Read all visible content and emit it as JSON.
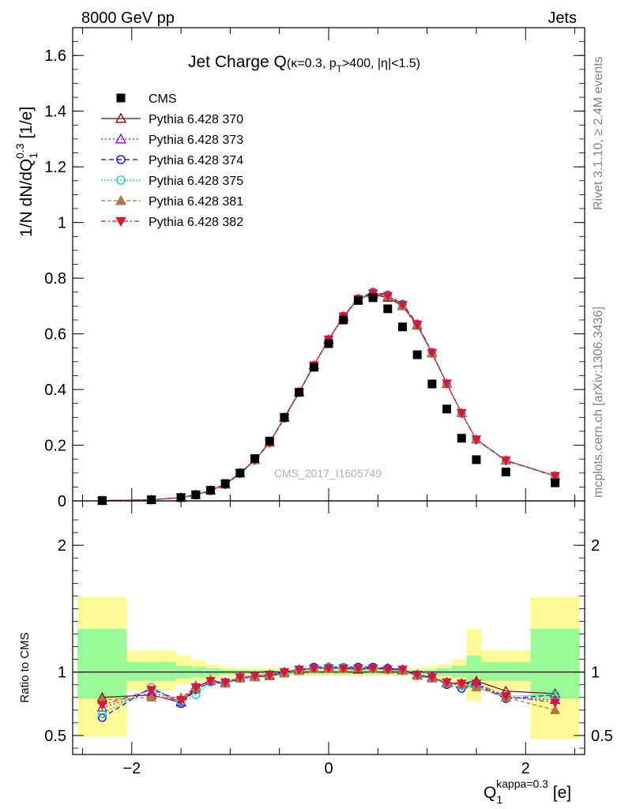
{
  "header": {
    "left_label": "8000 GeV pp",
    "right_label": "Jets",
    "side_top": "Rivet 3.1.10, ≥ 2.4M events",
    "side_bottom": "mcplots.cern.ch [arXiv:1306.3436]",
    "watermark": "CMS_2017_I1605749"
  },
  "colors": {
    "cms": "#000000",
    "p370": "#8b0000",
    "p373": "#9400d3",
    "p374": "#0000ff",
    "p375": "#00ced1",
    "p381": "#b07840",
    "p382": "#dc143c",
    "band_inner": "#98fb98",
    "band_outer": "#fffa96"
  },
  "chart_data": [
    {
      "type": "scatter",
      "panel": "main",
      "title_main": "Jet Charge Q",
      "title_sub": "(κ=0.3, p",
      "title_sub_sub": "T",
      "title_sub_rest": ">400, |η|<1.5)",
      "ylabel": "1/N dN/dQ",
      "ylabel_sub": "1",
      "ylabel_sup": "0.3",
      "ylabel_unit": " [1/e]",
      "xlim": [
        -2.6,
        2.6
      ],
      "ylim": [
        0,
        1.7
      ],
      "yticks": [
        0,
        0.2,
        0.4,
        0.6,
        0.8,
        1,
        1.2,
        1.4,
        1.6
      ],
      "ytick_labels": [
        "0",
        "0.2",
        "0.4",
        "0.6",
        "0.8",
        "1",
        "1.2",
        "1.4",
        "1.6"
      ],
      "legend_position": "top-left",
      "legend": [
        {
          "name": "CMS",
          "marker": "square",
          "color": "#000000"
        },
        {
          "name": "Pythia 6.428 370",
          "marker": "triangle-open",
          "color": "#8b0000"
        },
        {
          "name": "Pythia 6.428 373",
          "marker": "triangle-open",
          "color": "#9400d3"
        },
        {
          "name": "Pythia 6.428 374",
          "marker": "circle-open",
          "color": "#0000ff"
        },
        {
          "name": "Pythia 6.428 375",
          "marker": "circle-open",
          "color": "#00ced1"
        },
        {
          "name": "Pythia 6.428 381",
          "marker": "triangle",
          "color": "#b07840"
        },
        {
          "name": "Pythia 6.428 382",
          "marker": "triangle-down",
          "color": "#dc143c"
        }
      ],
      "x": [
        -2.3,
        -1.8,
        -1.5,
        -1.35,
        -1.2,
        -1.05,
        -0.9,
        -0.75,
        -0.6,
        -0.45,
        -0.3,
        -0.15,
        0.0,
        0.15,
        0.3,
        0.45,
        0.6,
        0.75,
        0.9,
        1.05,
        1.2,
        1.35,
        1.5,
        1.8,
        2.3
      ],
      "cms": [
        0.001,
        0.004,
        0.012,
        0.022,
        0.038,
        0.062,
        0.1,
        0.152,
        0.215,
        0.3,
        0.39,
        0.48,
        0.565,
        0.65,
        0.72,
        0.73,
        0.69,
        0.625,
        0.525,
        0.42,
        0.33,
        0.225,
        0.148,
        0.104,
        0.065
      ],
      "series": [
        {
          "name": "Pythia 6.428 370",
          "values": [
            0.001,
            0.004,
            0.012,
            0.022,
            0.038,
            0.06,
            0.1,
            0.148,
            0.21,
            0.3,
            0.392,
            0.488,
            0.58,
            0.663,
            0.725,
            0.742,
            0.73,
            0.7,
            0.63,
            0.53,
            0.42,
            0.315,
            0.22,
            0.145,
            0.09
          ]
        },
        {
          "name": "Pythia 6.428 373",
          "values": [
            0.001,
            0.004,
            0.012,
            0.022,
            0.037,
            0.059,
            0.099,
            0.147,
            0.209,
            0.298,
            0.39,
            0.486,
            0.578,
            0.66,
            0.723,
            0.745,
            0.735,
            0.703,
            0.633,
            0.532,
            0.422,
            0.316,
            0.221,
            0.146,
            0.09
          ]
        },
        {
          "name": "Pythia 6.428 374",
          "values": [
            0.001,
            0.004,
            0.011,
            0.021,
            0.036,
            0.058,
            0.098,
            0.146,
            0.208,
            0.297,
            0.389,
            0.487,
            0.58,
            0.664,
            0.727,
            0.75,
            0.74,
            0.707,
            0.636,
            0.534,
            0.42,
            0.314,
            0.219,
            0.144,
            0.089
          ]
        },
        {
          "name": "Pythia 6.428 375",
          "values": [
            0.001,
            0.004,
            0.011,
            0.021,
            0.036,
            0.058,
            0.098,
            0.146,
            0.208,
            0.296,
            0.388,
            0.485,
            0.579,
            0.662,
            0.726,
            0.748,
            0.738,
            0.705,
            0.634,
            0.533,
            0.421,
            0.315,
            0.22,
            0.145,
            0.09
          ]
        },
        {
          "name": "Pythia 6.428 381",
          "values": [
            0.001,
            0.004,
            0.012,
            0.022,
            0.037,
            0.059,
            0.099,
            0.147,
            0.209,
            0.299,
            0.391,
            0.487,
            0.579,
            0.662,
            0.724,
            0.744,
            0.734,
            0.701,
            0.631,
            0.531,
            0.421,
            0.315,
            0.22,
            0.145,
            0.09
          ]
        },
        {
          "name": "Pythia 6.428 382",
          "values": [
            0.001,
            0.004,
            0.012,
            0.022,
            0.037,
            0.059,
            0.099,
            0.147,
            0.209,
            0.299,
            0.391,
            0.487,
            0.58,
            0.663,
            0.725,
            0.746,
            0.736,
            0.704,
            0.633,
            0.532,
            0.422,
            0.316,
            0.221,
            0.146,
            0.09
          ]
        }
      ]
    },
    {
      "type": "scatter",
      "panel": "ratio",
      "ylabel": "Ratio to CMS",
      "xlabel": "Q",
      "xlabel_sub": "1",
      "xlabel_sup": "kappa=0.3",
      "xlabel_unit": " [e]",
      "xlim": [
        -2.6,
        2.6
      ],
      "ylim": [
        0.35,
        2.35
      ],
      "xticks": [
        -2,
        0,
        2
      ],
      "xtick_labels": [
        "−2",
        "0",
        "2"
      ],
      "yticks": [
        0.5,
        1,
        2
      ],
      "ytick_labels": [
        "0.5",
        "1",
        "2"
      ],
      "bins": [
        {
          "lo": -2.55,
          "hi": -2.05,
          "inner": [
            0.79,
            1.34
          ],
          "outer": [
            0.49,
            1.59
          ]
        },
        {
          "lo": -2.05,
          "hi": -1.55,
          "inner": [
            0.93,
            1.08
          ],
          "outer": [
            0.86,
            1.17
          ]
        },
        {
          "lo": -1.55,
          "hi": -1.4,
          "inner": [
            0.95,
            1.05
          ],
          "outer": [
            0.9,
            1.13
          ]
        },
        {
          "lo": -1.4,
          "hi": -1.25,
          "inner": [
            0.96,
            1.04
          ],
          "outer": [
            0.92,
            1.09
          ]
        },
        {
          "lo": -1.25,
          "hi": -1.1,
          "inner": [
            0.97,
            1.03
          ],
          "outer": [
            0.94,
            1.06
          ]
        },
        {
          "lo": -1.1,
          "hi": -0.95,
          "inner": [
            0.98,
            1.02
          ],
          "outer": [
            0.96,
            1.04
          ]
        },
        {
          "lo": -0.95,
          "hi": 0.95,
          "inner": [
            0.985,
            1.015
          ],
          "outer": [
            0.97,
            1.03
          ]
        },
        {
          "lo": 0.95,
          "hi": 1.1,
          "inner": [
            0.98,
            1.02
          ],
          "outer": [
            0.96,
            1.04
          ]
        },
        {
          "lo": 1.1,
          "hi": 1.25,
          "inner": [
            0.97,
            1.03
          ],
          "outer": [
            0.94,
            1.06
          ]
        },
        {
          "lo": 1.25,
          "hi": 1.4,
          "inner": [
            0.96,
            1.05
          ],
          "outer": [
            0.92,
            1.1
          ]
        },
        {
          "lo": 1.4,
          "hi": 1.55,
          "inner": [
            0.87,
            1.13
          ],
          "outer": [
            0.77,
            1.34
          ]
        },
        {
          "lo": 1.55,
          "hi": 2.05,
          "inner": [
            0.93,
            1.08
          ],
          "outer": [
            0.86,
            1.17
          ]
        },
        {
          "lo": 2.05,
          "hi": 2.55,
          "inner": [
            0.79,
            1.34
          ],
          "outer": [
            0.47,
            1.59
          ]
        }
      ],
      "x": [
        -2.3,
        -1.8,
        -1.5,
        -1.35,
        -1.2,
        -1.05,
        -0.9,
        -0.75,
        -0.6,
        -0.45,
        -0.3,
        -0.15,
        0.0,
        0.15,
        0.3,
        0.45,
        0.6,
        0.75,
        0.9,
        1.05,
        1.2,
        1.35,
        1.5,
        1.8,
        2.3
      ],
      "series": [
        {
          "name": "Pythia 6.428 370",
          "values": [
            0.8,
            0.82,
            0.76,
            0.87,
            0.94,
            0.91,
            0.95,
            0.96,
            0.97,
            0.99,
            1.01,
            1.03,
            1.03,
            1.03,
            1.02,
            1.03,
            1.03,
            1.02,
            0.97,
            0.96,
            0.91,
            0.91,
            0.93,
            0.85,
            0.83
          ]
        },
        {
          "name": "Pythia 6.428 373",
          "values": [
            0.72,
            0.84,
            0.77,
            0.89,
            0.93,
            0.92,
            0.96,
            0.97,
            0.98,
            1.0,
            1.02,
            1.03,
            1.04,
            1.03,
            1.03,
            1.03,
            1.02,
            1.02,
            0.98,
            0.95,
            0.92,
            0.9,
            0.91,
            0.8,
            0.78
          ]
        },
        {
          "name": "Pythia 6.428 374",
          "values": [
            0.64,
            0.88,
            0.75,
            0.86,
            0.92,
            0.91,
            0.95,
            0.96,
            0.98,
            1.0,
            1.02,
            1.04,
            1.04,
            1.04,
            1.04,
            1.04,
            1.03,
            1.02,
            0.97,
            0.96,
            0.9,
            0.87,
            0.9,
            0.79,
            0.82
          ]
        },
        {
          "name": "Pythia 6.428 375",
          "values": [
            0.67,
            0.88,
            0.76,
            0.82,
            0.92,
            0.92,
            0.96,
            0.96,
            0.98,
            0.99,
            1.02,
            1.03,
            1.04,
            1.04,
            1.03,
            1.03,
            1.02,
            1.01,
            0.97,
            0.95,
            0.91,
            0.89,
            0.88,
            0.81,
            0.82
          ]
        },
        {
          "name": "Pythia 6.428 381",
          "values": [
            0.78,
            0.8,
            0.8,
            0.88,
            0.94,
            0.91,
            0.95,
            0.96,
            0.98,
            0.99,
            1.01,
            1.03,
            1.03,
            1.03,
            1.03,
            1.03,
            1.02,
            1.01,
            0.97,
            0.95,
            0.91,
            0.9,
            0.88,
            0.8,
            0.7
          ]
        },
        {
          "name": "Pythia 6.428 382",
          "values": [
            0.74,
            0.86,
            0.78,
            0.88,
            0.93,
            0.92,
            0.96,
            0.97,
            0.98,
            1.0,
            1.02,
            1.03,
            1.03,
            1.03,
            1.03,
            1.03,
            1.02,
            1.02,
            0.98,
            0.96,
            0.92,
            0.91,
            0.91,
            0.81,
            0.76
          ]
        }
      ]
    }
  ]
}
